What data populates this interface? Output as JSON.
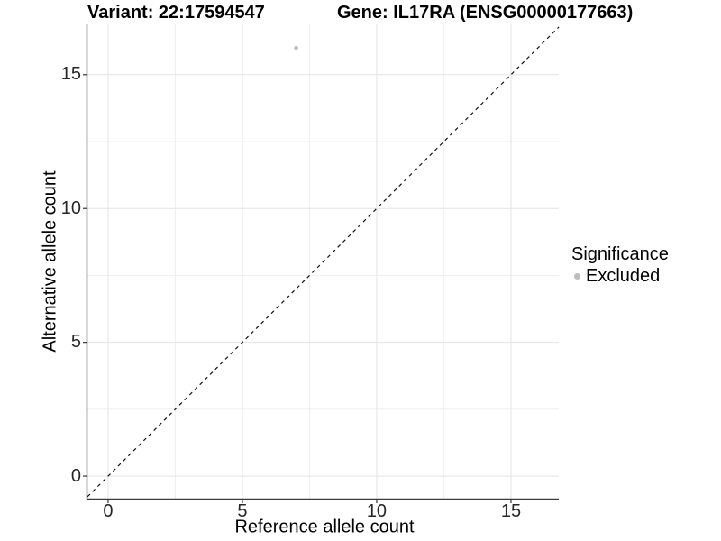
{
  "chart_data": {
    "type": "scatter",
    "title_left": "Variant: 22:17594547",
    "title_right": "Gene: IL17RA (ENSG00000177663)",
    "xlabel": "Reference allele count",
    "ylabel": "Alternative allele count",
    "xlim": [
      -0.77,
      16.78
    ],
    "ylim": [
      -0.84,
      16.88
    ],
    "x_ticks": [
      0,
      5,
      10,
      15
    ],
    "y_ticks": [
      0,
      5,
      10,
      15
    ],
    "x_minor_gridlines": [
      2.5,
      7.5,
      12.5
    ],
    "y_minor_gridlines": [
      2.5,
      7.5,
      12.5
    ],
    "grid": "major and minor, light gray, on white panel",
    "series": [
      {
        "name": "Excluded",
        "marker": "circle",
        "color": "#bdbdbd",
        "points": [
          [
            7,
            16
          ]
        ]
      }
    ],
    "reference_line": {
      "kind": "identity y=x",
      "style": "dashed",
      "color": "#111111"
    },
    "legend": {
      "position": "right",
      "title": "Significance",
      "entries": [
        {
          "label": "Excluded",
          "color": "#bdbdbd",
          "marker": "circle"
        }
      ]
    },
    "colors": {
      "major_grid": "#e4e4e4",
      "minor_grid": "#efefef",
      "axis_line": "#3d3d3d",
      "tick_mark": "#333333",
      "tick_text": "#262626",
      "title_text": "#000000"
    }
  }
}
